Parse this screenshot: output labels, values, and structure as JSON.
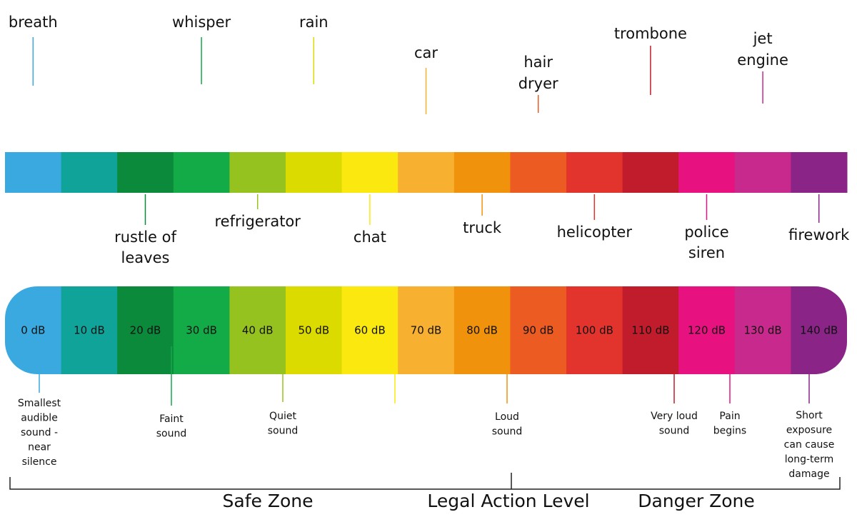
{
  "scale": [
    {
      "level": "0 dB",
      "color": "#3aa9e0",
      "source": [
        "breath"
      ]
    },
    {
      "level": "10 dB",
      "color": "#0fa39a"
    },
    {
      "level": "20 dB",
      "color": "#0a8a3a",
      "source": [
        "rustle of",
        "leaves"
      ]
    },
    {
      "level": "30 dB",
      "color": "#12ab48",
      "source": [
        "whisper"
      ]
    },
    {
      "level": "40 dB",
      "color": "#96c21f",
      "source": [
        "refrigerator"
      ]
    },
    {
      "level": "50 dB",
      "color": "#dcdb00",
      "source": [
        "rain"
      ]
    },
    {
      "level": "60 dB",
      "color": "#fbe80f",
      "source": [
        "chat"
      ]
    },
    {
      "level": "70 dB",
      "color": "#f7b02f",
      "source": [
        "car"
      ]
    },
    {
      "level": "80 dB",
      "color": "#f1920c",
      "source": [
        "truck"
      ]
    },
    {
      "level": "90 dB",
      "color": "#ec5b22",
      "source": [
        "hair",
        "dryer"
      ]
    },
    {
      "level": "100 dB",
      "color": "#e3332d",
      "source": [
        "helicopter"
      ]
    },
    {
      "level": "110 dB",
      "color": "#c11c2c",
      "source": [
        "trombone"
      ]
    },
    {
      "level": "120 dB",
      "color": "#e7127f",
      "source": [
        "police",
        "siren"
      ]
    },
    {
      "level": "130 dB",
      "color": "#c72a8c",
      "source": [
        "jet",
        "engine"
      ]
    },
    {
      "level": "140 dB",
      "color": "#8a2486",
      "source": [
        "firework"
      ]
    }
  ],
  "notes": [
    [
      "Smallest",
      "audible",
      "sound -",
      "near",
      "silence"
    ],
    [
      "Faint",
      "sound"
    ],
    [
      "Quiet",
      "sound"
    ],
    [
      "Loud",
      "sound"
    ],
    [
      "Very loud",
      "sound"
    ],
    [
      "Pain",
      "begins"
    ],
    [
      "Short",
      "exposure",
      "can cause",
      "long-term",
      "damage"
    ]
  ],
  "zones": [
    "Safe Zone",
    "Legal Action Level",
    "Danger Zone"
  ]
}
